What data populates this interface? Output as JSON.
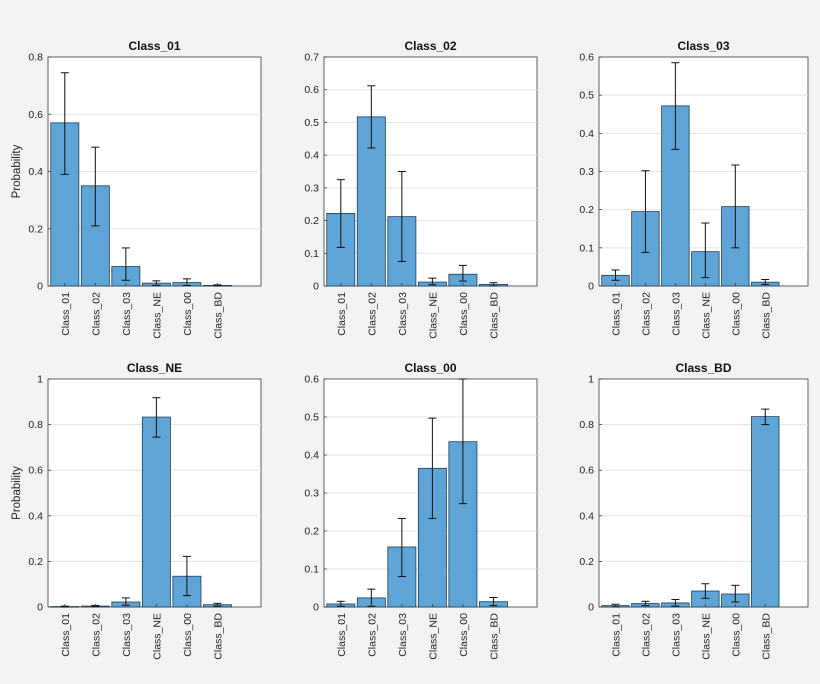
{
  "colors": {
    "bar": "#5fa4d6",
    "background": "#f3f3f3"
  },
  "chart_data": [
    {
      "type": "bar",
      "title": "Class_01",
      "ylabel": "Probability",
      "ylim": [
        0,
        0.8
      ],
      "yticks": [
        "0",
        "0.2",
        "0.4",
        "0.6",
        "0.8"
      ],
      "categories": [
        "Class_01",
        "Class_02",
        "Class_03",
        "Class_NE",
        "Class_00",
        "Class_BD"
      ],
      "values": [
        0.57,
        0.35,
        0.068,
        0.01,
        0.012,
        0.002
      ],
      "error_low": [
        0.39,
        0.21,
        0.02,
        0.002,
        0.002,
        0.0
      ],
      "error_high": [
        0.745,
        0.485,
        0.133,
        0.018,
        0.025,
        0.004
      ],
      "grid": true
    },
    {
      "type": "bar",
      "title": "Class_02",
      "ylabel": "",
      "ylim": [
        0,
        0.7
      ],
      "yticks": [
        "0",
        "0.1",
        "0.2",
        "0.3",
        "0.4",
        "0.5",
        "0.6",
        "0.7"
      ],
      "categories": [
        "Class_01",
        "Class_02",
        "Class_03",
        "Class_NE",
        "Class_00",
        "Class_BD"
      ],
      "values": [
        0.222,
        0.517,
        0.212,
        0.012,
        0.036,
        0.005
      ],
      "error_low": [
        0.118,
        0.422,
        0.075,
        0.004,
        0.015,
        0.0
      ],
      "error_high": [
        0.325,
        0.612,
        0.35,
        0.024,
        0.063,
        0.01
      ],
      "grid": true
    },
    {
      "type": "bar",
      "title": "Class_03",
      "ylabel": "",
      "ylim": [
        0,
        0.6
      ],
      "yticks": [
        "0",
        "0.1",
        "0.2",
        "0.3",
        "0.4",
        "0.5",
        "0.6"
      ],
      "categories": [
        "Class_01",
        "Class_02",
        "Class_03",
        "Class_NE",
        "Class_00",
        "Class_BD"
      ],
      "values": [
        0.028,
        0.195,
        0.472,
        0.09,
        0.208,
        0.01
      ],
      "error_low": [
        0.015,
        0.088,
        0.358,
        0.022,
        0.1,
        0.004
      ],
      "error_high": [
        0.042,
        0.302,
        0.585,
        0.165,
        0.317,
        0.017
      ],
      "grid": true
    },
    {
      "type": "bar",
      "title": "Class_NE",
      "ylabel": "Probability",
      "ylim": [
        0,
        1
      ],
      "yticks": [
        "0",
        "0.2",
        "0.4",
        "0.6",
        "0.8",
        "1"
      ],
      "categories": [
        "Class_01",
        "Class_02",
        "Class_03",
        "Class_NE",
        "Class_00",
        "Class_BD"
      ],
      "values": [
        0.002,
        0.004,
        0.022,
        0.833,
        0.135,
        0.01
      ],
      "error_low": [
        0.0,
        0.001,
        0.008,
        0.745,
        0.05,
        0.004
      ],
      "error_high": [
        0.004,
        0.007,
        0.04,
        0.918,
        0.222,
        0.016
      ],
      "grid": true
    },
    {
      "type": "bar",
      "title": "Class_00",
      "ylabel": "",
      "ylim": [
        0,
        0.6
      ],
      "yticks": [
        "0",
        "0.1",
        "0.2",
        "0.3",
        "0.4",
        "0.5",
        "0.6"
      ],
      "categories": [
        "Class_01",
        "Class_02",
        "Class_03",
        "Class_NE",
        "Class_00",
        "Class_BD"
      ],
      "values": [
        0.008,
        0.024,
        0.158,
        0.365,
        0.435,
        0.014
      ],
      "error_low": [
        0.002,
        0.002,
        0.08,
        0.233,
        0.272,
        0.004
      ],
      "error_high": [
        0.015,
        0.047,
        0.233,
        0.497,
        0.6,
        0.025
      ],
      "grid": true
    },
    {
      "type": "bar",
      "title": "Class_BD",
      "ylabel": "",
      "ylim": [
        0,
        1
      ],
      "yticks": [
        "0",
        "0.2",
        "0.4",
        "0.6",
        "0.8",
        "1"
      ],
      "categories": [
        "Class_01",
        "Class_02",
        "Class_03",
        "Class_NE",
        "Class_00",
        "Class_BD"
      ],
      "values": [
        0.006,
        0.015,
        0.018,
        0.07,
        0.057,
        0.835
      ],
      "error_low": [
        0.001,
        0.006,
        0.004,
        0.038,
        0.022,
        0.8
      ],
      "error_high": [
        0.012,
        0.025,
        0.033,
        0.102,
        0.095,
        0.868
      ],
      "grid": true
    }
  ]
}
